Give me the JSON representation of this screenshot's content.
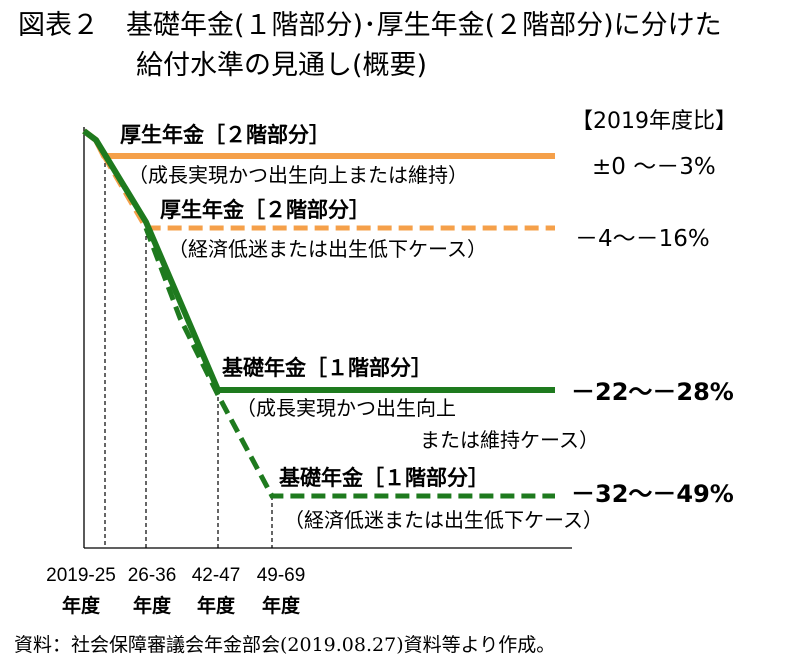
{
  "title": {
    "line1": "図表２　基礎年金(１階部分)･厚生年金(２階部分)に分けた",
    "line2": "給付水準の見通し(概要)"
  },
  "comparison_label": "【2019年度比】",
  "source_note": "資料：社会保障審議会年金部会(2019.08.27)資料等より作成。",
  "colors": {
    "orange": "#F5A04A",
    "green": "#1E7A1E",
    "axis": "#000000"
  },
  "chart_data": {
    "type": "line",
    "x_periods": [
      {
        "top": "2019-25",
        "bottom": "年度"
      },
      {
        "top": "26-36",
        "bottom": "年度"
      },
      {
        "top": "42-47",
        "bottom": "年度"
      },
      {
        "top": "49-69",
        "bottom": "年度"
      }
    ],
    "series": [
      {
        "key": "kosei_growth",
        "color": "orange",
        "dashed": false,
        "label_main": "厚生年金［２階部分］",
        "label_sub1": "（成長実現かつ出生向上または維持）",
        "label_sub2": "",
        "result": "±0 〜－3%",
        "result_bold": false
      },
      {
        "key": "kosei_low",
        "color": "orange",
        "dashed": true,
        "label_main": "厚生年金［２階部分］",
        "label_sub1": "（経済低迷または出生低下ケース）",
        "label_sub2": "",
        "result": "－4〜－16%",
        "result_bold": false
      },
      {
        "key": "kiso_growth",
        "color": "green",
        "dashed": false,
        "label_main": "基礎年金［１階部分］",
        "label_sub1": "（成長実現かつ出生向上",
        "label_sub2": "　または維持ケース）",
        "result": "－22〜－28%",
        "result_bold": true
      },
      {
        "key": "kiso_low",
        "color": "green",
        "dashed": true,
        "label_main": "基礎年金［１階部分］",
        "label_sub1": "（経済低迷または出生低下ケース）",
        "label_sub2": "",
        "result": "－32〜－49%",
        "result_bold": true
      }
    ]
  }
}
